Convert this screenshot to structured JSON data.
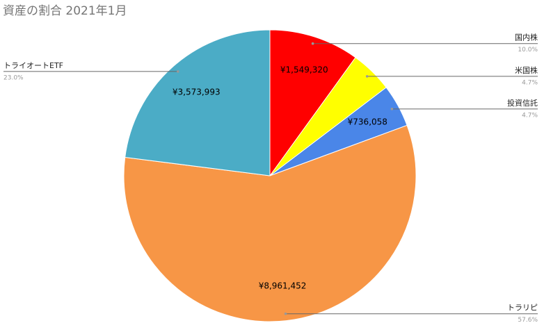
{
  "chart_data": {
    "type": "pie",
    "title": "資産の割合 2021年1月",
    "categories": [
      "国内株",
      "米国株",
      "投資信託",
      "トラリピ",
      "トライオートETF"
    ],
    "values": [
      1549320,
      729000,
      736058,
      8961452,
      3573993
    ],
    "value_labels": [
      "¥1,549,320",
      null,
      "¥736,058",
      "¥8,961,452",
      "¥3,573,993"
    ],
    "percent_labels": [
      "10.0%",
      "4.7%",
      "4.7%",
      "57.6%",
      "23.0%"
    ],
    "colors": [
      "#ff0000",
      "#ffff00",
      "#4a86e8",
      "#f79646",
      "#4bacc6"
    ]
  }
}
